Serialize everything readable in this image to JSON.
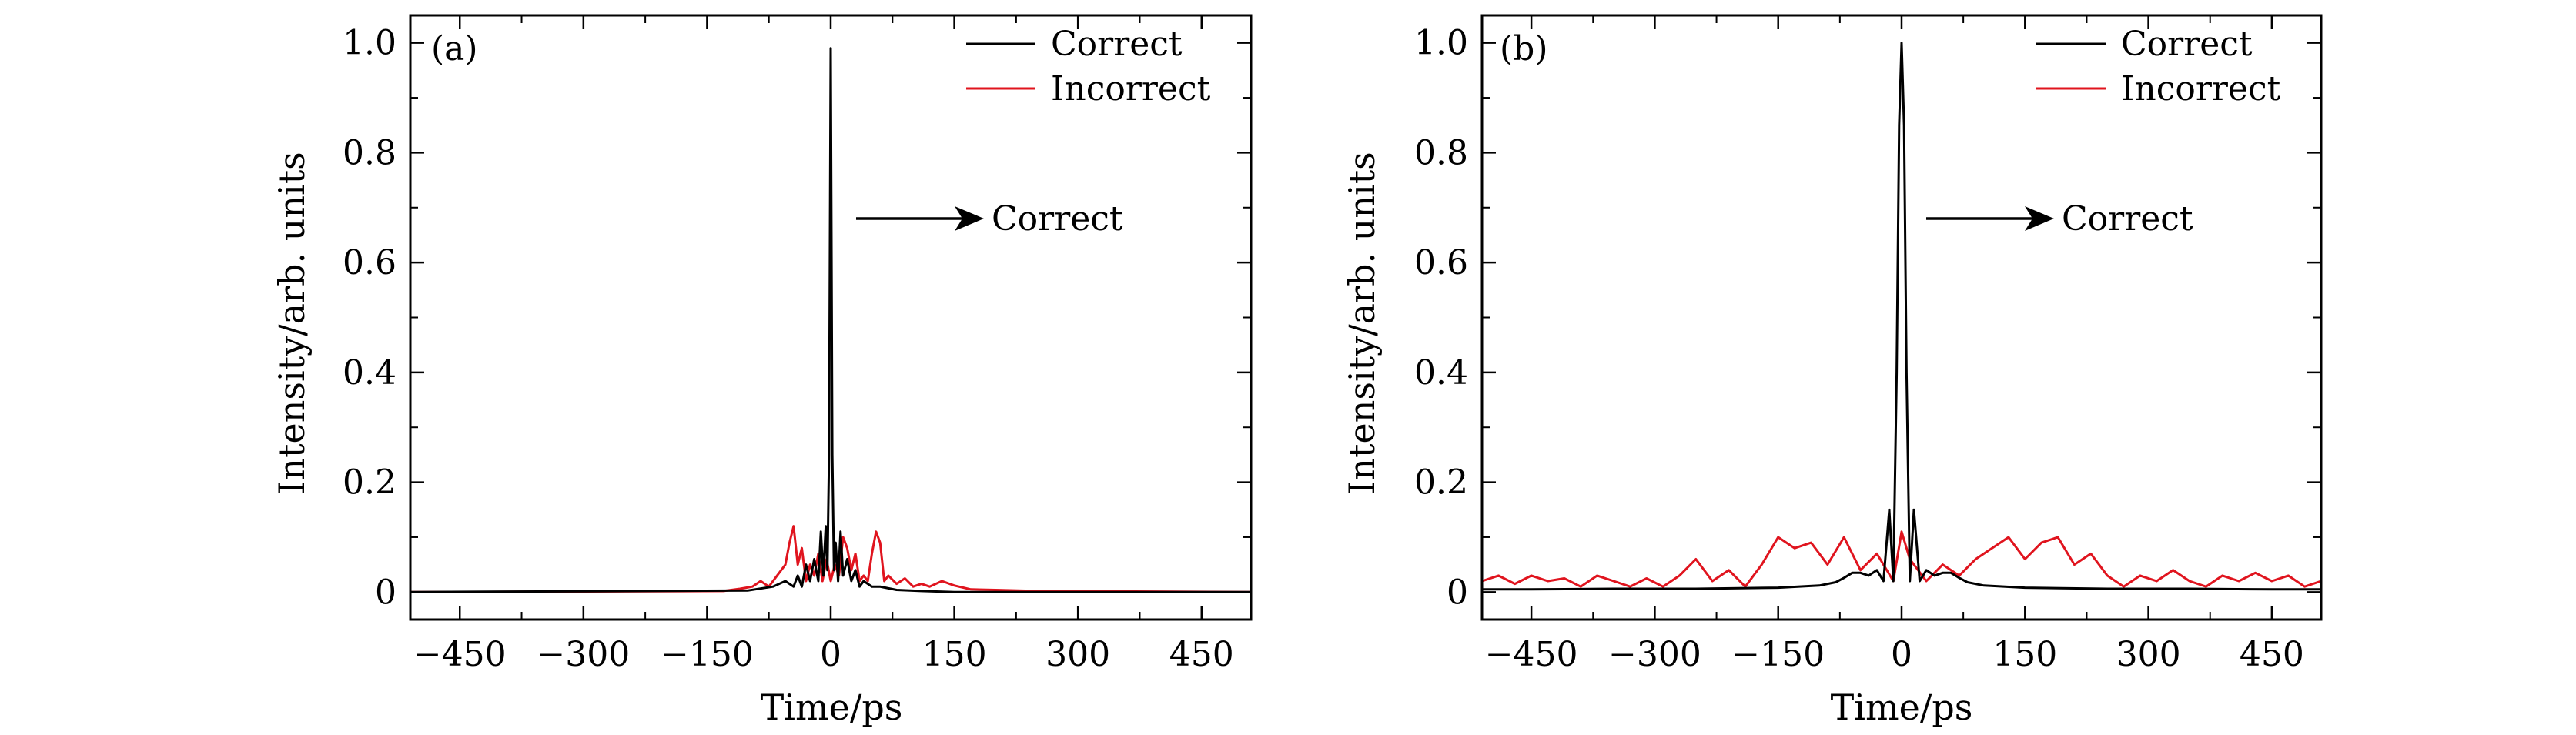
{
  "figure": {
    "panels": [
      {
        "tag": "(a)",
        "xlabel": "Time/ps",
        "ylabel": "Intensity/arb. units",
        "annotation": "Correct",
        "legend": [
          {
            "label": "Correct",
            "color": "#000000"
          },
          {
            "label": "Incorrect",
            "color": "#e0141e"
          }
        ]
      },
      {
        "tag": "(b)",
        "xlabel": "Time/ps",
        "ylabel": "Intensity/arb. units",
        "annotation": "Correct",
        "legend": [
          {
            "label": "Correct",
            "color": "#000000"
          },
          {
            "label": "Incorrect",
            "color": "#e0141e"
          }
        ]
      }
    ]
  },
  "chart_data": [
    {
      "type": "line",
      "panel": "(a)",
      "xlabel": "Time/ps",
      "ylabel": "Intensity/arb. units",
      "xlim": [
        -510,
        510
      ],
      "ylim": [
        -0.05,
        1.05
      ],
      "xticks": [
        -450,
        -300,
        -150,
        0,
        150,
        300,
        450
      ],
      "xtick_labels": [
        "−450",
        "−300",
        "−150",
        "0",
        "150",
        "300",
        "450"
      ],
      "yticks": [
        0,
        0.2,
        0.4,
        0.6,
        0.8,
        1.0
      ],
      "ytick_labels": [
        "0",
        "0.2",
        "0.4",
        "0.6",
        "0.8",
        "1.0"
      ],
      "legend_position": "top-right",
      "annotation": {
        "text": "Correct",
        "arrow": "right"
      },
      "series": [
        {
          "name": "Correct",
          "color": "#000000",
          "x": [
            -510,
            -100,
            -70,
            -55,
            -45,
            -40,
            -35,
            -30,
            -25,
            -20,
            -15,
            -12,
            -9,
            -6,
            -4,
            -2,
            0,
            2,
            4,
            6,
            9,
            12,
            15,
            20,
            25,
            30,
            35,
            40,
            50,
            60,
            80,
            110,
            150,
            510
          ],
          "y": [
            0,
            0.003,
            0.01,
            0.02,
            0.01,
            0.03,
            0.01,
            0.05,
            0.02,
            0.06,
            0.02,
            0.11,
            0.03,
            0.12,
            0.04,
            0.25,
            0.99,
            0.25,
            0.04,
            0.09,
            0.02,
            0.11,
            0.03,
            0.06,
            0.02,
            0.04,
            0.01,
            0.02,
            0.01,
            0.01,
            0.004,
            0.002,
            0,
            0
          ]
        },
        {
          "name": "Incorrect",
          "color": "#e0141e",
          "x": [
            -510,
            -130,
            -110,
            -95,
            -85,
            -75,
            -65,
            -55,
            -50,
            -45,
            -40,
            -35,
            -30,
            -25,
            -20,
            -15,
            -10,
            -5,
            0,
            5,
            10,
            15,
            20,
            25,
            30,
            35,
            40,
            45,
            50,
            55,
            60,
            65,
            70,
            80,
            90,
            100,
            110,
            120,
            135,
            150,
            170,
            200,
            250,
            510
          ],
          "y": [
            0,
            0.002,
            0.006,
            0.01,
            0.02,
            0.01,
            0.03,
            0.05,
            0.09,
            0.12,
            0.05,
            0.08,
            0.02,
            0.05,
            0.03,
            0.07,
            0.02,
            0.06,
            0.02,
            0.05,
            0.03,
            0.1,
            0.08,
            0.04,
            0.07,
            0.02,
            0.03,
            0.02,
            0.07,
            0.11,
            0.09,
            0.02,
            0.03,
            0.015,
            0.025,
            0.01,
            0.015,
            0.01,
            0.02,
            0.012,
            0.005,
            0.004,
            0.002,
            0
          ]
        }
      ]
    },
    {
      "type": "line",
      "panel": "(b)",
      "xlabel": "Time/ps",
      "ylabel": "Intensity/arb. units",
      "xlim": [
        -510,
        510
      ],
      "ylim": [
        -0.05,
        1.05
      ],
      "xticks": [
        -450,
        -300,
        -150,
        0,
        150,
        300,
        450
      ],
      "xtick_labels": [
        "−450",
        "−300",
        "−150",
        "0",
        "150",
        "300",
        "450"
      ],
      "yticks": [
        0,
        0.2,
        0.4,
        0.6,
        0.8,
        1.0
      ],
      "ytick_labels": [
        "0",
        "0.2",
        "0.4",
        "0.6",
        "0.8",
        "1.0"
      ],
      "legend_position": "top-right",
      "annotation": {
        "text": "Correct",
        "arrow": "right"
      },
      "series": [
        {
          "name": "Correct",
          "color": "#000000",
          "x": [
            -510,
            -450,
            -350,
            -250,
            -150,
            -100,
            -80,
            -70,
            -60,
            -50,
            -40,
            -30,
            -22,
            -15,
            -10,
            -6,
            -3,
            0,
            3,
            6,
            10,
            15,
            22,
            30,
            40,
            50,
            60,
            70,
            80,
            100,
            150,
            250,
            350,
            450,
            510
          ],
          "y": [
            0.005,
            0.005,
            0.006,
            0.006,
            0.008,
            0.012,
            0.018,
            0.026,
            0.035,
            0.035,
            0.03,
            0.04,
            0.02,
            0.15,
            0.02,
            0.4,
            0.85,
            1.0,
            0.85,
            0.4,
            0.02,
            0.15,
            0.02,
            0.04,
            0.03,
            0.035,
            0.035,
            0.026,
            0.018,
            0.012,
            0.008,
            0.006,
            0.006,
            0.005,
            0.005
          ]
        },
        {
          "name": "Incorrect",
          "color": "#e0141e",
          "x": [
            -510,
            -490,
            -470,
            -450,
            -430,
            -410,
            -390,
            -370,
            -350,
            -330,
            -310,
            -290,
            -270,
            -250,
            -230,
            -210,
            -190,
            -170,
            -150,
            -130,
            -110,
            -90,
            -70,
            -50,
            -30,
            -10,
            0,
            10,
            30,
            50,
            70,
            90,
            110,
            130,
            150,
            170,
            190,
            210,
            230,
            250,
            270,
            290,
            310,
            330,
            350,
            370,
            390,
            410,
            430,
            450,
            470,
            490,
            510
          ],
          "y": [
            0.02,
            0.03,
            0.015,
            0.03,
            0.02,
            0.025,
            0.01,
            0.03,
            0.02,
            0.01,
            0.025,
            0.01,
            0.03,
            0.06,
            0.02,
            0.04,
            0.01,
            0.05,
            0.1,
            0.08,
            0.09,
            0.05,
            0.1,
            0.04,
            0.07,
            0.02,
            0.11,
            0.06,
            0.02,
            0.05,
            0.03,
            0.06,
            0.08,
            0.1,
            0.06,
            0.09,
            0.1,
            0.05,
            0.07,
            0.03,
            0.01,
            0.03,
            0.02,
            0.04,
            0.02,
            0.01,
            0.03,
            0.02,
            0.035,
            0.02,
            0.03,
            0.01,
            0.02
          ]
        }
      ]
    }
  ]
}
